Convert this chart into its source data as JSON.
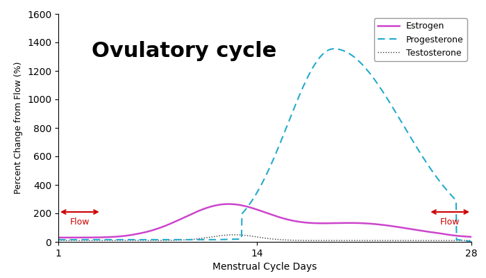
{
  "title": "Ovulatory cycle",
  "xlabel": "Menstrual Cycle Days",
  "ylabel": "Percent Change from Flow (%)",
  "xlim": [
    1,
    28
  ],
  "ylim": [
    0,
    1600
  ],
  "yticks": [
    0,
    200,
    400,
    600,
    800,
    1000,
    1200,
    1400,
    1600
  ],
  "xticks": [
    1,
    14,
    28
  ],
  "flow_label": "Flow",
  "flow_color": "#cc0000",
  "estrogen_color": "#cc44cc",
  "progesterone_color": "#22aacc",
  "testosterone_color": "#333333",
  "background_color": "#ffffff",
  "title_fontsize": 22,
  "title_fontweight": "bold",
  "legend_labels": [
    "Estrogen",
    "Progesterone",
    "Testosterone"
  ]
}
